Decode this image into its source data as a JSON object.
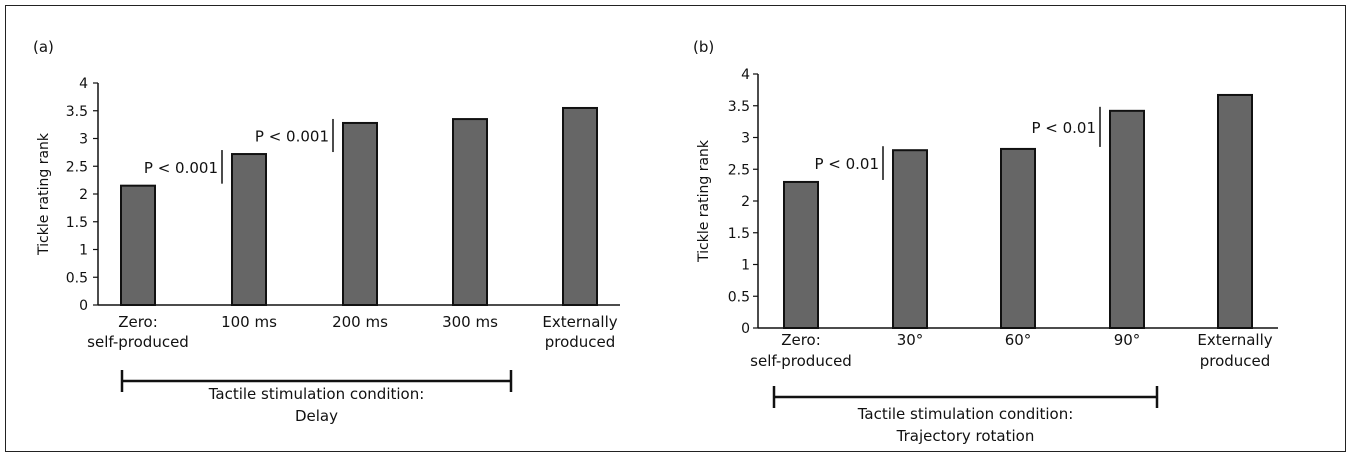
{
  "chart_data": [
    {
      "panel_label": "(a)",
      "type": "bar",
      "ylabel": "Tickle rating rank",
      "ylim": [
        0,
        4
      ],
      "yticks": [
        "0",
        "0.5",
        "1",
        "1.5",
        "2",
        "2.5",
        "3",
        "3.5",
        "4"
      ],
      "categories": [
        [
          "Zero:",
          "self-produced"
        ],
        [
          "100 ms"
        ],
        [
          "200 ms"
        ],
        [
          "300 ms"
        ],
        [
          "Externally",
          "produced"
        ]
      ],
      "values": [
        2.15,
        2.72,
        3.28,
        3.35,
        3.55
      ],
      "bar_color": "#666666",
      "annotations": [
        {
          "text": "P < 0.001",
          "between": [
            0,
            1
          ]
        },
        {
          "text": "P < 0.001",
          "between": [
            1,
            2
          ]
        }
      ],
      "condition_label": [
        "Tactile stimulation condition:",
        "Delay"
      ]
    },
    {
      "panel_label": "(b)",
      "type": "bar",
      "ylabel": "Tickle rating rank",
      "ylim": [
        0,
        4
      ],
      "yticks": [
        "0",
        "0.5",
        "1",
        "1.5",
        "2",
        "2.5",
        "3",
        "3.5",
        "4"
      ],
      "categories": [
        [
          "Zero:",
          "self-produced"
        ],
        [
          "30°"
        ],
        [
          "60°"
        ],
        [
          "90°"
        ],
        [
          "Externally",
          "produced"
        ]
      ],
      "values": [
        2.3,
        2.8,
        2.82,
        3.42,
        3.67
      ],
      "bar_color": "#666666",
      "annotations": [
        {
          "text": "P < 0.01",
          "between": [
            0,
            1
          ]
        },
        {
          "text": "P < 0.01",
          "between": [
            2,
            3
          ]
        }
      ],
      "condition_label": [
        "Tactile stimulation condition:",
        "Trajectory rotation"
      ]
    }
  ]
}
